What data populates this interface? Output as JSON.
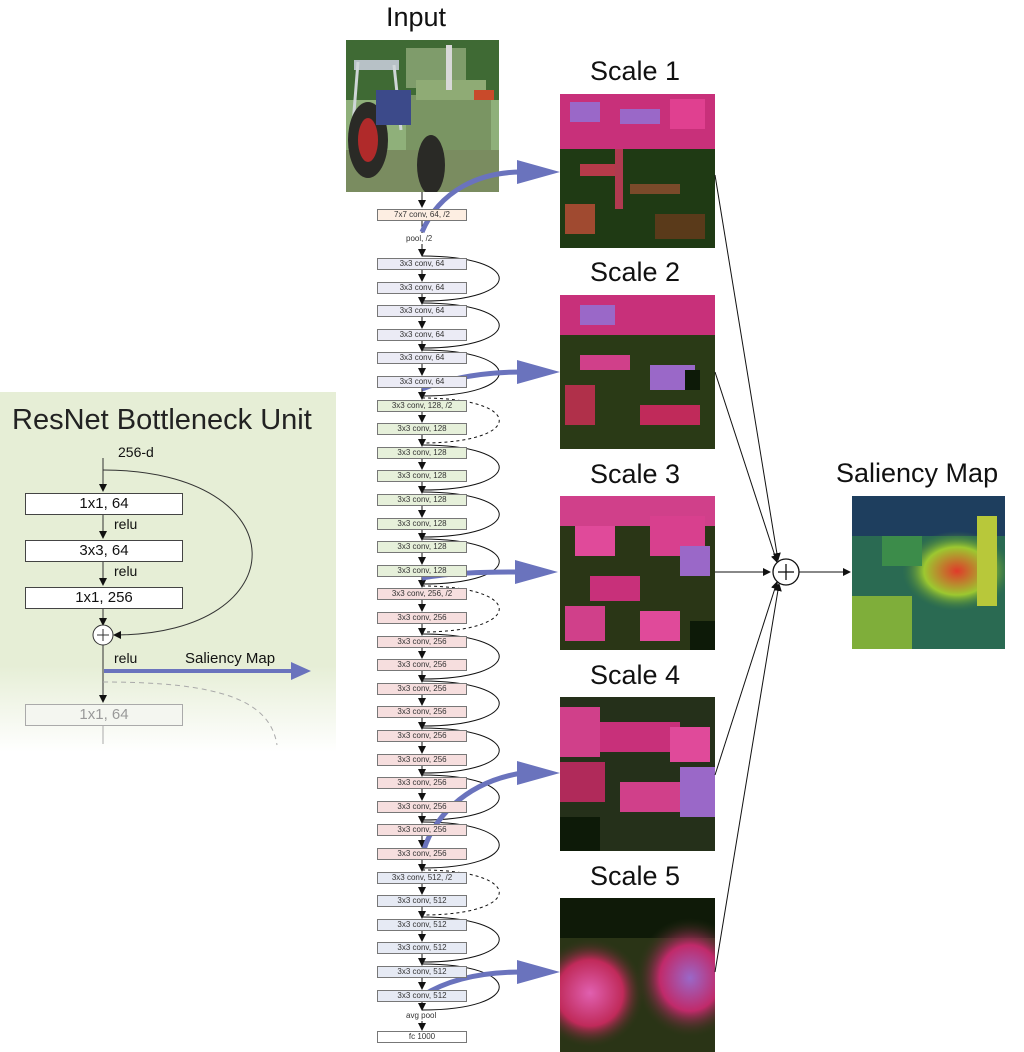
{
  "titles": {
    "input": "Input",
    "scale1": "Scale 1",
    "scale2": "Scale 2",
    "scale3": "Scale 3",
    "scale4": "Scale 4",
    "scale5": "Scale 5",
    "saliency": "Saliency  Map",
    "bottleneck": "ResNet Bottleneck Unit"
  },
  "bottleneck": {
    "input_dim": "256-d",
    "boxes": [
      "1x1, 64",
      "3x3, 64",
      "1x1, 256"
    ],
    "relu": "relu",
    "next_box": "1x1, 64",
    "saliency_label": "Saliency Map"
  },
  "network": {
    "first": "7x7 conv, 64, /2",
    "pool": "pool, /2",
    "layers": [
      "3x3 conv, 64",
      "3x3 conv, 64",
      "3x3 conv, 64",
      "3x3 conv, 64",
      "3x3 conv, 64",
      "3x3 conv, 64",
      "3x3 conv, 128, /2",
      "3x3 conv, 128",
      "3x3 conv, 128",
      "3x3 conv, 128",
      "3x3 conv, 128",
      "3x3 conv, 128",
      "3x3 conv, 128",
      "3x3 conv, 128",
      "3x3 conv, 256, /2",
      "3x3 conv, 256",
      "3x3 conv, 256",
      "3x3 conv, 256",
      "3x3 conv, 256",
      "3x3 conv, 256",
      "3x3 conv, 256",
      "3x3 conv, 256",
      "3x3 conv, 256",
      "3x3 conv, 256",
      "3x3 conv, 256",
      "3x3 conv, 256",
      "3x3 conv, 512, /2",
      "3x3 conv, 512",
      "3x3 conv, 512",
      "3x3 conv, 512",
      "3x3 conv, 512",
      "3x3 conv, 512"
    ],
    "avgpool": "avg pool",
    "fc": "fc 1000"
  },
  "colors": {
    "arrow": "#6a73bd",
    "panel": "#e6eed6"
  }
}
